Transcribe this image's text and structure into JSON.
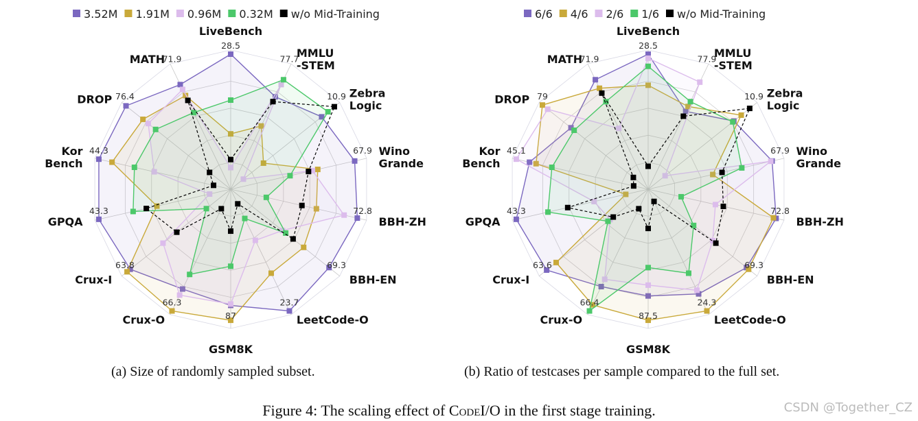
{
  "chart_data": [
    {
      "type": "radar",
      "title": "",
      "value_scale": "normalized radius per axis (1 = axis max label)",
      "axes": [
        "LiveBench",
        "MMLU\n-STEM",
        "Zebra\nLogic",
        "Wino\nGrande",
        "BBH-ZH",
        "BBH-EN",
        "LeetCode-O",
        "GSM8K",
        "Crux-O",
        "Crux-I",
        "GPQA",
        "Kor\nBench",
        "DROP",
        "MATH"
      ],
      "axis_max_labels": [
        "28.5",
        "77.7",
        "10.9",
        "67.9",
        "72.8",
        "69.3",
        "23.7",
        "87",
        "66.3",
        "63.8",
        "43.3",
        "44.3",
        "76.4",
        "71.9"
      ],
      "grid": true,
      "legend_position": "top",
      "series": [
        {
          "name": "3.52M",
          "color": "#7b68c0",
          "dashed": false,
          "values": [
            1.0,
            0.76,
            0.86,
            0.94,
            0.96,
            0.93,
            1.0,
            0.86,
            0.82,
            0.95,
            1.0,
            1.0,
            0.99,
            0.86
          ]
        },
        {
          "name": "1.91M",
          "color": "#c9a93a",
          "dashed": false,
          "values": [
            0.41,
            0.52,
            0.31,
            0.66,
            0.65,
            0.69,
            0.69,
            0.97,
            1.0,
            0.98,
            0.56,
            0.9,
            0.83,
            0.77
          ]
        },
        {
          "name": "0.96M",
          "color": "#dcbcec",
          "dashed": false,
          "values": [
            0.16,
            0.86,
            0.12,
            0.62,
            0.86,
            0.49,
            0.42,
            0.85,
            0.87,
            0.64,
            0.16,
            0.58,
            0.78,
            0.82
          ]
        },
        {
          "name": "0.32M",
          "color": "#4cc86a",
          "dashed": false,
          "values": [
            0.66,
            0.9,
            0.92,
            0.45,
            0.27,
            0.52,
            0.24,
            0.57,
            0.7,
            0.23,
            0.74,
            0.73,
            0.71,
            0.63
          ]
        },
        {
          "name": "w/o Mid-Training",
          "color": "#000000",
          "dashed": true,
          "values": [
            0.22,
            0.72,
            0.98,
            0.59,
            0.54,
            0.59,
            0.12,
            0.31,
            0.16,
            0.51,
            0.64,
            0.13,
            0.2,
            0.73
          ]
        }
      ],
      "caption": "(a) Size of randomly sampled subset."
    },
    {
      "type": "radar",
      "title": "",
      "value_scale": "normalized radius per axis (1 = axis max label)",
      "axes": [
        "LiveBench",
        "MMLU\n-STEM",
        "Zebra\nLogic",
        "Wino\nGrande",
        "BBH-ZH",
        "BBH-EN",
        "LeetCode-O",
        "GSM8K",
        "Crux-O",
        "Crux-I",
        "GPQA",
        "Kor\nBench",
        "DROP",
        "MATH"
      ],
      "axis_max_labels": [
        "28.5",
        "77.9",
        "10.9",
        "67.9",
        "72.8",
        "69.3",
        "24.3",
        "87.5",
        "66.4",
        "63.6",
        "43.3",
        "45.1",
        "79",
        "71.9"
      ],
      "grid": true,
      "legend_position": "top",
      "series": [
        {
          "name": "6/6",
          "color": "#7b68c0",
          "dashed": false,
          "values": [
            1.0,
            0.64,
            0.81,
            0.94,
            0.97,
            0.93,
            0.86,
            0.79,
            0.8,
            0.96,
            1.0,
            0.9,
            0.73,
            0.9
          ]
        },
        {
          "name": "4/6",
          "color": "#c9a93a",
          "dashed": false,
          "values": [
            0.77,
            0.68,
            0.88,
            0.49,
            0.95,
            0.95,
            1.0,
            0.97,
            0.95,
            0.87,
            0.17,
            0.85,
            1.0,
            0.83
          ]
        },
        {
          "name": "2/6",
          "color": "#dcbcec",
          "dashed": false,
          "values": [
            0.97,
            0.88,
            0.16,
            0.93,
            0.51,
            0.61,
            0.83,
            0.71,
            0.74,
            0.36,
            0.41,
            1.0,
            0.95,
            0.5
          ]
        },
        {
          "name": "1/6",
          "color": "#4cc86a",
          "dashed": false,
          "values": [
            0.91,
            0.72,
            0.8,
            0.71,
            0.25,
            0.43,
            0.69,
            0.58,
            1.0,
            0.38,
            0.76,
            0.73,
            0.7,
            0.72
          ]
        },
        {
          "name": "w/o Mid-Training",
          "color": "#000000",
          "dashed": true,
          "values": [
            0.17,
            0.6,
            0.96,
            0.56,
            0.57,
            0.64,
            0.1,
            0.29,
            0.16,
            0.33,
            0.61,
            0.11,
            0.14,
            0.79
          ]
        }
      ],
      "caption": "(b) Ratio of testcases per sample compared to the full set."
    }
  ],
  "figure_caption": {
    "prefix": "Figure 4: The scaling effect of ",
    "name": "CodeI/O",
    "suffix": " in the first stage training."
  },
  "watermark": "CSDN @Together_CZ"
}
